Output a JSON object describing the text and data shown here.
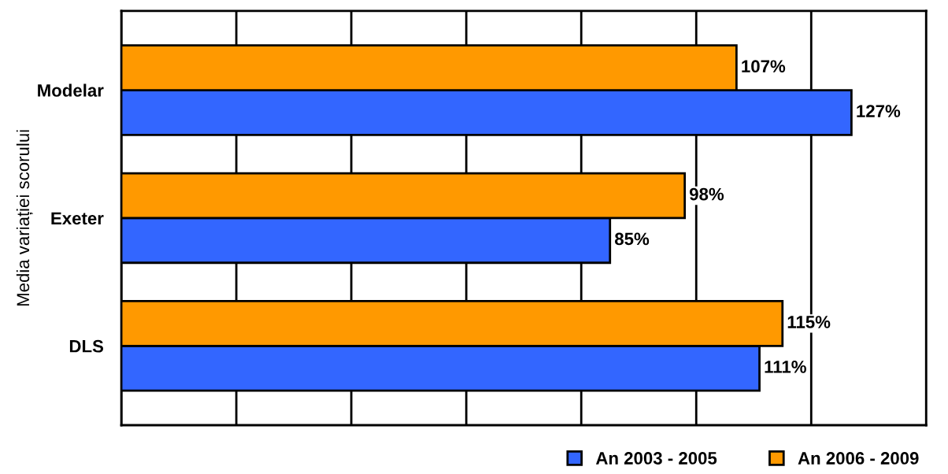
{
  "chart_data": {
    "type": "bar",
    "orientation": "horizontal",
    "ylabel": "Media variației scorului",
    "categories": [
      "Modelar",
      "Exeter",
      "DLS"
    ],
    "series": [
      {
        "name": "An 2003 - 2005",
        "color": "#3366ff",
        "values": [
          127,
          85,
          111
        ],
        "value_labels": [
          "127%",
          "85%",
          "111%"
        ]
      },
      {
        "name": "An 2006 - 2009",
        "color": "#ff9900",
        "values": [
          107,
          98,
          115
        ],
        "value_labels": [
          "107%",
          "98%",
          "115%"
        ]
      }
    ],
    "xlim": [
      0,
      140
    ],
    "xticks": [
      {
        "value": 0,
        "label": null
      },
      {
        "value": 20,
        "label": null
      },
      {
        "value": 40,
        "label": null
      },
      {
        "value": 60,
        "label": null
      },
      {
        "value": 80,
        "label": null
      },
      {
        "value": 100,
        "label": null
      },
      {
        "value": 120,
        "label": null
      },
      {
        "value": 140,
        "label": null
      }
    ],
    "tick_labels": "y",
    "grid": "x",
    "legend": "bottom right"
  }
}
